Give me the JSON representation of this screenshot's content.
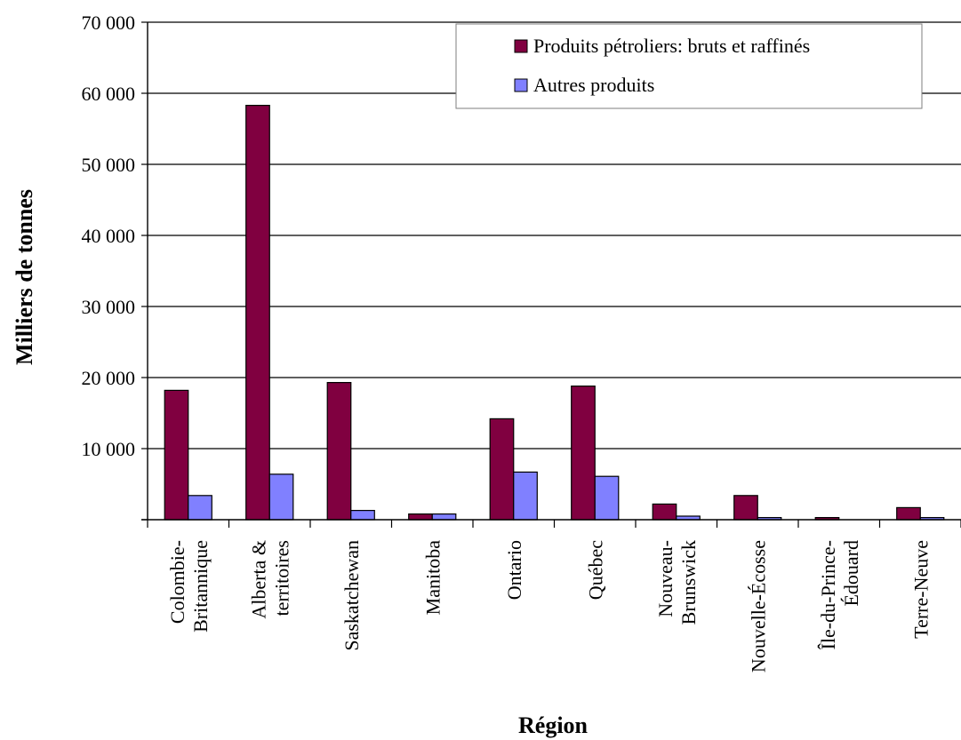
{
  "chart_data": {
    "type": "bar",
    "title": "",
    "xlabel": "Région",
    "ylabel": "Milliers de tonnes",
    "ylim": [
      0,
      70000
    ],
    "yticks": [
      0,
      10000,
      20000,
      30000,
      40000,
      50000,
      60000,
      70000
    ],
    "ytick_labels": [
      "",
      "10 000",
      "20 000",
      "30 000",
      "40 000",
      "50 000",
      "60 000",
      "70 000"
    ],
    "grid": "horizontal",
    "legend_position": "top-right",
    "categories": [
      [
        "Colombie-",
        "Britannique"
      ],
      [
        "Alberta &",
        "territoires"
      ],
      [
        "Saskatchewan"
      ],
      [
        "Manitoba"
      ],
      [
        "Ontario"
      ],
      [
        "Québec"
      ],
      [
        "Nouveau-",
        "Brunswick"
      ],
      [
        "Nouvelle-Écosse"
      ],
      [
        "Île-du-Prince-",
        "Édouard"
      ],
      [
        "Terre-Neuve"
      ]
    ],
    "series": [
      {
        "name": "Produits pétroliers: bruts et raffinés",
        "color": "#800040",
        "values": [
          18200,
          58300,
          19300,
          800,
          14200,
          18800,
          2200,
          3400,
          300,
          1700
        ]
      },
      {
        "name": "Autres produits",
        "color": "#8080ff",
        "values": [
          3400,
          6400,
          1300,
          800,
          6700,
          6100,
          500,
          300,
          0,
          300
        ]
      }
    ]
  }
}
